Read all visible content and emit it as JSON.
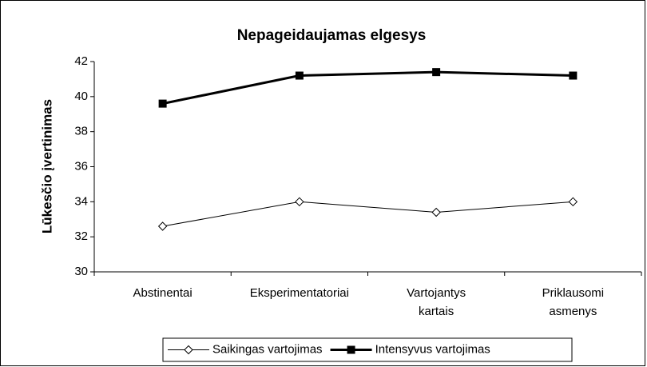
{
  "chart_data": {
    "type": "line",
    "title": "Nepageidaujamas elgesys",
    "y_label": "Lūkesčio įvertinimas",
    "categories": [
      "Abstinentai",
      "Eksperimentatoriai",
      "Vartojantys kartais",
      "Priklausomi asmenys"
    ],
    "series": [
      {
        "name": "Saikingas vartojimas",
        "color": "#000000",
        "marker": "diamond",
        "values": [
          32.6,
          34.0,
          33.4,
          34.0
        ]
      },
      {
        "name": "Intensyvus vartojimas",
        "color": "#000000",
        "marker": "square",
        "values": [
          39.6,
          41.2,
          41.4,
          41.2
        ]
      }
    ],
    "ylim": [
      30,
      42
    ],
    "yticks": [
      30,
      32,
      34,
      36,
      38,
      40,
      42
    ],
    "grid": false,
    "legend": "bottom"
  }
}
